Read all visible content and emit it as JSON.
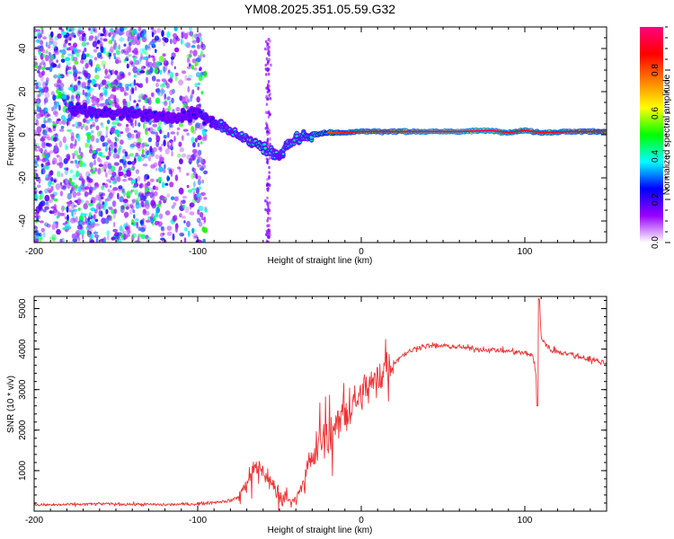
{
  "title": "YM08.2025.351.05.59.G32",
  "chart_data": [
    {
      "type": "heatmap",
      "xlabel": "Height of straight line (km)",
      "ylabel": "Frequency (Hz)",
      "xlim": [
        -200,
        150
      ],
      "ylim": [
        -50,
        50
      ],
      "xticks": [
        -200,
        -100,
        0,
        100
      ],
      "xtick_labels": [
        "-200",
        "-100",
        "0",
        "100"
      ],
      "yticks": [
        -40,
        -20,
        0,
        20,
        40
      ],
      "ytick_labels": [
        "-40",
        "-20",
        "0",
        "20",
        "40"
      ],
      "colorbar": {
        "label": "Normalized spectral amplitude",
        "range": [
          0,
          1
        ],
        "ticks": [
          0.0,
          0.2,
          0.4,
          0.6,
          0.8
        ],
        "tick_labels": [
          "0.0",
          "0.2",
          "0.4",
          "0.6",
          "0.8"
        ],
        "colors": [
          "#ffffff",
          "#9900ff",
          "#0000ff",
          "#00ffff",
          "#00ff00",
          "#ffff00",
          "#ff8000",
          "#ff0000",
          "#ff0080"
        ]
      },
      "ridge": {
        "x": [
          -175,
          -160,
          -145,
          -130,
          -115,
          -100,
          -90,
          -80,
          -70,
          -60,
          -55,
          -50,
          -45,
          -40,
          -30,
          -20,
          -10,
          0,
          10,
          20,
          40,
          60,
          80,
          90,
          100,
          110,
          130,
          150
        ],
        "freq_hz": [
          12,
          10,
          10,
          9,
          8,
          10,
          6,
          2,
          -2,
          -6,
          -8,
          -10,
          -5,
          -2,
          0,
          1,
          1,
          1.5,
          1.5,
          1.5,
          1.5,
          1.5,
          2,
          1,
          2,
          1,
          1.5,
          1.5
        ],
        "amplitude": [
          0.3,
          0.3,
          0.3,
          0.28,
          0.2,
          0.3,
          0.35,
          0.4,
          0.45,
          0.5,
          0.45,
          0.35,
          0.4,
          0.45,
          0.55,
          0.75,
          0.8,
          0.85,
          0.85,
          0.85,
          0.9,
          0.9,
          0.9,
          0.85,
          0.85,
          0.85,
          0.85,
          0.8
        ]
      }
    },
    {
      "type": "line",
      "xlabel": "Height of straight line (km)",
      "ylabel": "SNR (10 * v/v)",
      "xlim": [
        -200,
        150
      ],
      "ylim": [
        0,
        5300
      ],
      "xticks": [
        -200,
        -100,
        0,
        100
      ],
      "xtick_labels": [
        "-200",
        "-100",
        "0",
        "100"
      ],
      "yticks": [
        1000,
        2000,
        3000,
        4000,
        5000
      ],
      "ytick_labels": [
        "1000",
        "2000",
        "3000",
        "4000",
        "5000"
      ],
      "series": [
        {
          "name": "SNR",
          "color": "#ee3333",
          "x": [
            -200,
            -180,
            -160,
            -140,
            -120,
            -100,
            -90,
            -80,
            -75,
            -70,
            -65,
            -60,
            -55,
            -50,
            -45,
            -40,
            -35,
            -30,
            -25,
            -20,
            -15,
            -10,
            -5,
            0,
            5,
            10,
            15,
            20,
            25,
            30,
            35,
            40,
            50,
            60,
            70,
            80,
            90,
            100,
            105,
            107,
            108,
            109,
            110,
            115,
            120,
            130,
            140,
            150
          ],
          "values": [
            150,
            160,
            180,
            170,
            160,
            180,
            220,
            260,
            350,
            700,
            1100,
            1000,
            700,
            400,
            250,
            300,
            800,
            1300,
            1700,
            1900,
            2100,
            2300,
            2600,
            2900,
            3100,
            3300,
            3450,
            3650,
            3850,
            3950,
            4050,
            4080,
            4080,
            4050,
            4000,
            3980,
            3950,
            3900,
            3850,
            3300,
            2600,
            5200,
            4300,
            4000,
            3950,
            3850,
            3750,
            3650
          ]
        }
      ]
    }
  ]
}
